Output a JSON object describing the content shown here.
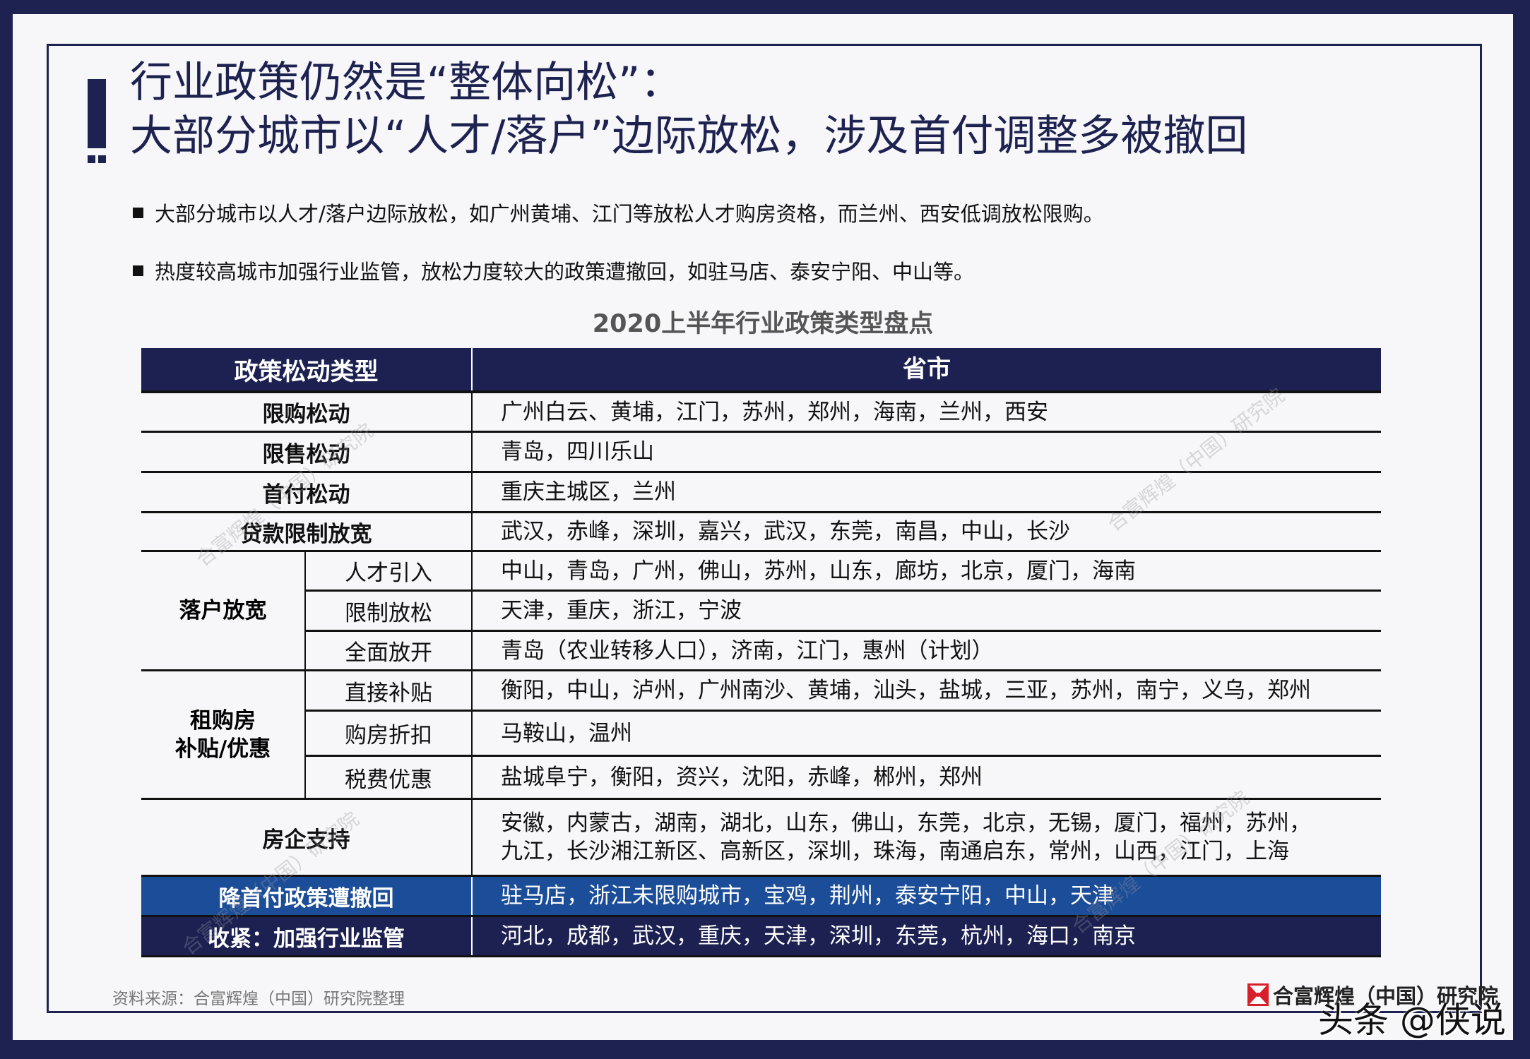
{
  "title": {
    "line1": "行业政策仍然是“整体向松”：",
    "line2": "大部分城市以“人才/落户”边际放松，涉及首付调整多被撤回"
  },
  "bullets": [
    "大部分城市以人才/落户边际放松，如广州黄埔、江门等放松人才购房资格，而兰州、西安低调放松限购。",
    "热度较高城市加强行业监管，放松力度较大的政策遭撤回，如驻马店、泰安宁阳、中山等。"
  ],
  "table": {
    "title": "2020上半年行业政策类型盘点",
    "headers": [
      "政策松动类型",
      "省市"
    ],
    "rows": [
      {
        "type": "限购松动",
        "value": "广州白云、黄埔，江门，苏州，郑州，海南，兰州，西安"
      },
      {
        "type": "限售松动",
        "value": "青岛，四川乐山"
      },
      {
        "type": "首付松动",
        "value": "重庆主城区，兰州"
      },
      {
        "type": "贷款限制放宽",
        "value": "武汉，赤峰，深圳，嘉兴，武汉，东莞，南昌，中山，长沙"
      }
    ],
    "groups": [
      {
        "label": "落户放宽",
        "items": [
          {
            "sub": "人才引入",
            "value": "中山，青岛，广州，佛山，苏州，山东，廊坊，北京，厦门，海南"
          },
          {
            "sub": "限制放松",
            "value": "天津，重庆，浙江，宁波"
          },
          {
            "sub": "全面放开",
            "value": "青岛（农业转移人口），济南，江门，惠州（计划）"
          }
        ]
      },
      {
        "label": "租购房\n补贴/优惠",
        "label_line1": "租购房",
        "label_line2": "补贴/优惠",
        "items": [
          {
            "sub": "直接补贴",
            "value": "衡阳，中山，泸州，广州南沙、黄埔，汕头，盐城，三亚，苏州，南宁，义乌，郑州"
          },
          {
            "sub": "购房折扣",
            "value": "马鞍山，温州"
          },
          {
            "sub": "税费优惠",
            "value": "盐城阜宁，衡阳，资兴，沈阳，赤峰，郴州，郑州"
          }
        ]
      }
    ],
    "support": {
      "type": "房企支持",
      "value_line1": "安徽，内蒙古，湖南，湖北，山东，佛山，东莞，北京，无锡，厦门，福州，苏州，",
      "value_line2": "九江，长沙湘江新区、高新区，深圳，珠海，南通启东，常州，山西，江门，上海"
    },
    "revoked": {
      "type": "降首付政策遭撤回",
      "value": "驻马店，浙江未限购城市，宝鸡，荆州，泰安宁阳，中山，天津"
    },
    "tighten": {
      "type": "收紧：加强行业监管",
      "value": "河北，成都，武汉，重庆，天津，深圳，东莞，杭州，海口，南京"
    }
  },
  "source": "资料来源：合富辉煌（中国）研究院整理",
  "logo_text": "合富辉煌（中国）研究院",
  "watermark": "头条 @侠说",
  "diagonal_watermark": "合富辉煌（中国）研究院",
  "colors": {
    "navy": "#1e2250",
    "highlight_blue": "#1b4d98",
    "logo_red": "#d7202a"
  }
}
